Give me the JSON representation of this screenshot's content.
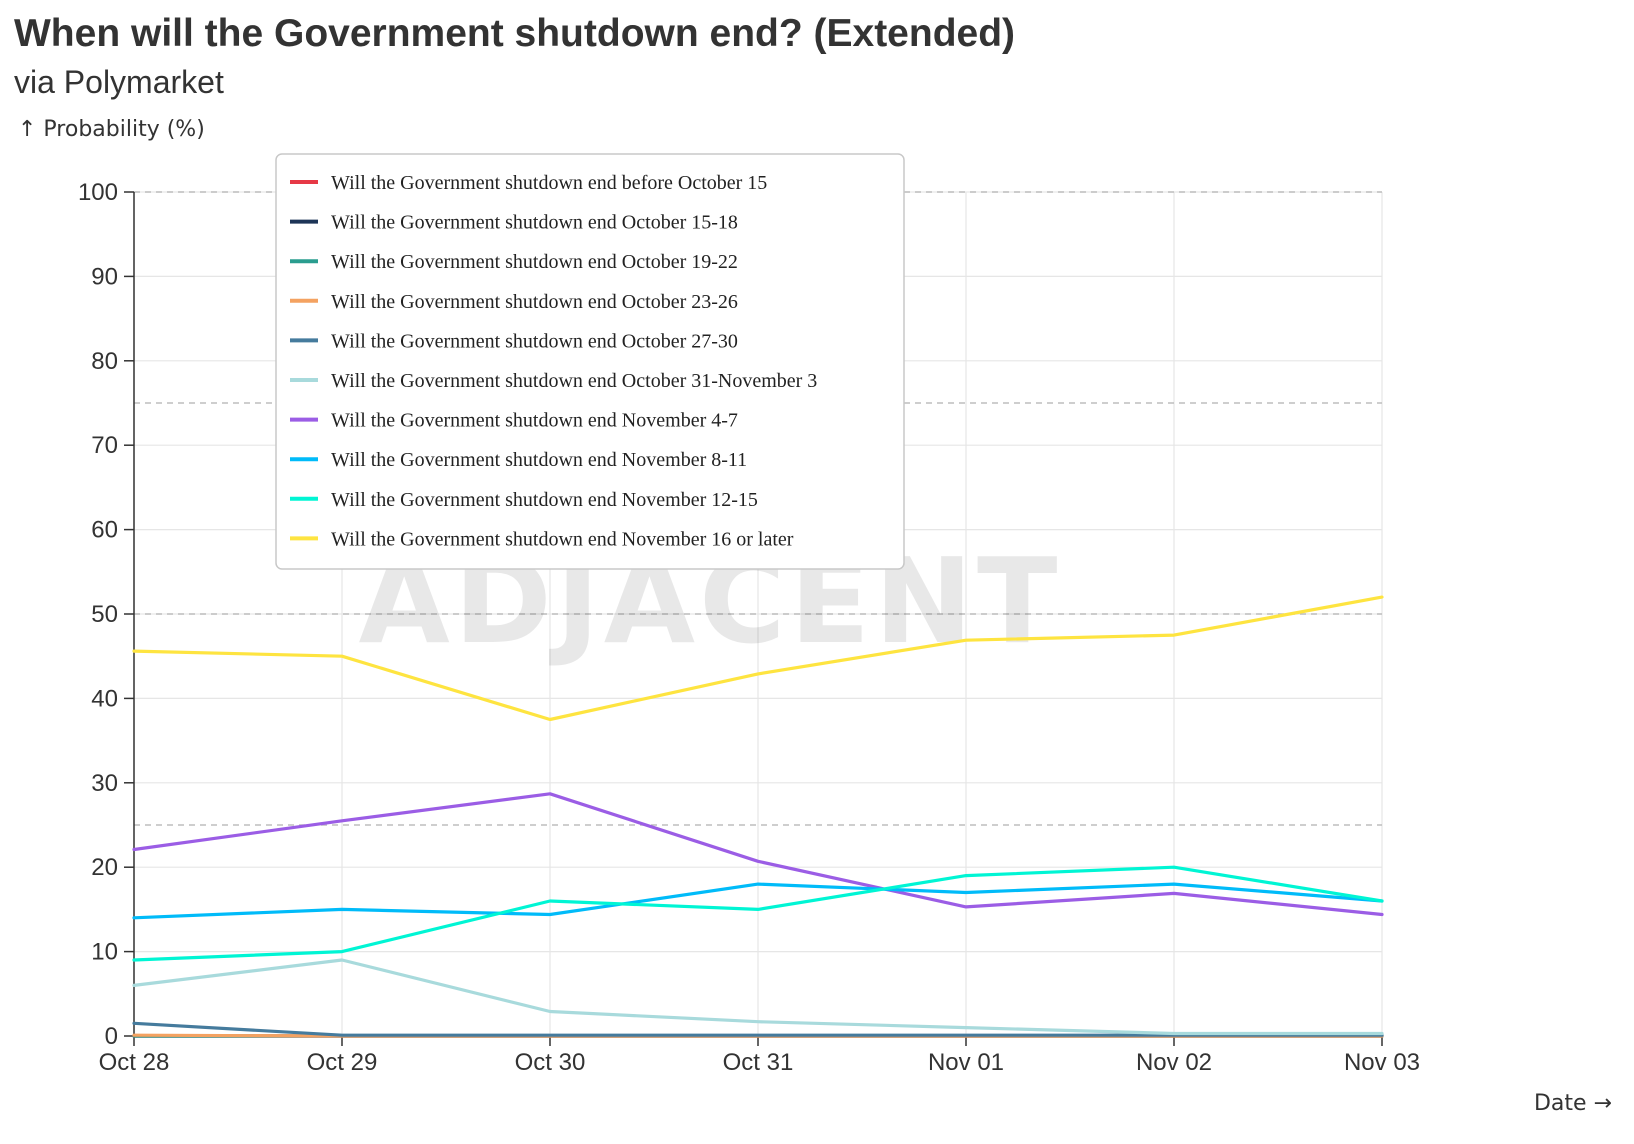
{
  "header": {
    "title": "When will the Government shutdown end? (Extended)",
    "subtitle": "via Polymarket"
  },
  "watermark": "ADJACENT",
  "chart_data": {
    "type": "line",
    "title": "When will the Government shutdown end? (Extended)",
    "subtitle": "via Polymarket",
    "xlabel": "Date →",
    "ylabel": "↑ Probability (%)",
    "ylim": [
      0,
      100
    ],
    "yticks": [
      0,
      10,
      20,
      30,
      40,
      50,
      60,
      70,
      80,
      90,
      100
    ],
    "reference_lines": [
      25,
      50,
      75,
      100
    ],
    "grid": true,
    "legend_position": "top-left",
    "x": [
      "Oct 28",
      "Oct 29",
      "Oct 30",
      "Oct 31",
      "Nov 01",
      "Nov 02",
      "Nov 03"
    ],
    "series": [
      {
        "name": "Will the Government shutdown end before October 15",
        "color": "#e63946",
        "values": [
          0,
          0,
          0,
          0,
          0,
          0,
          0
        ]
      },
      {
        "name": "Will the Government shutdown end October 15-18",
        "color": "#1d3557",
        "values": [
          0,
          0,
          0,
          0,
          0,
          0,
          0
        ]
      },
      {
        "name": "Will the Government shutdown end October 19-22",
        "color": "#2a9d8f",
        "values": [
          0,
          0,
          0,
          0,
          0,
          0,
          0
        ]
      },
      {
        "name": "Will the Government shutdown end October 23-26",
        "color": "#f4a261",
        "values": [
          0.1,
          0,
          0,
          0,
          0,
          0,
          0
        ]
      },
      {
        "name": "Will the Government shutdown end October 27-30",
        "color": "#457b9d",
        "values": [
          1.5,
          0.1,
          0.1,
          0.1,
          0.1,
          0.1,
          0.1
        ]
      },
      {
        "name": "Will the Government shutdown end October 31-November 3",
        "color": "#a8dadc",
        "values": [
          6,
          9,
          2.9,
          1.7,
          1,
          0.3,
          0.3
        ]
      },
      {
        "name": "Will the Government shutdown end November 4-7",
        "color": "#9b5de5",
        "values": [
          22.1,
          25.5,
          28.7,
          20.7,
          15.3,
          16.9,
          14.4
        ]
      },
      {
        "name": "Will the Government shutdown end November 8-11",
        "color": "#00bbf9",
        "values": [
          14,
          15,
          14.4,
          18,
          17,
          18,
          16
        ]
      },
      {
        "name": "Will the Government shutdown end November 12-15",
        "color": "#00f5d4",
        "values": [
          9,
          10,
          16,
          15,
          19,
          20,
          16
        ]
      },
      {
        "name": "Will the Government shutdown end November 16 or later",
        "color": "#fee440",
        "values": [
          45.6,
          45,
          37.5,
          42.9,
          46.9,
          47.5,
          52
        ]
      }
    ]
  }
}
